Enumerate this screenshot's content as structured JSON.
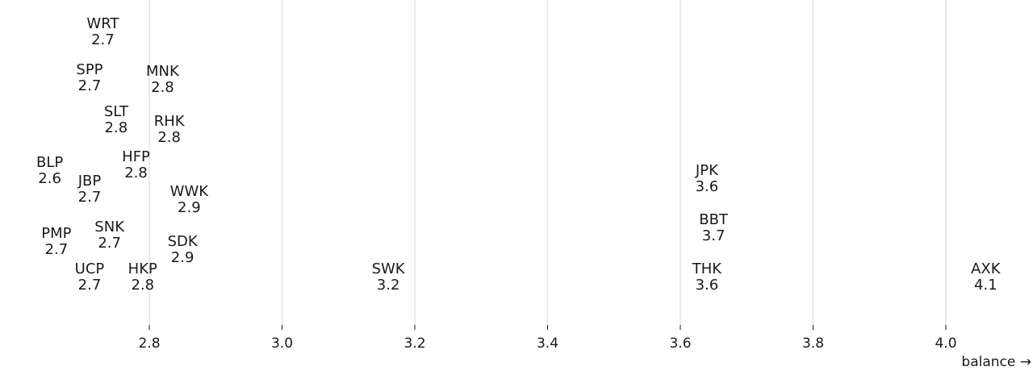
{
  "chart_data": {
    "type": "scatter",
    "title": "",
    "xlabel": "balance →",
    "ylabel": "",
    "xlim": [
      2.6,
      4.1
    ],
    "x_ticks": [
      2.8,
      3.0,
      3.2,
      3.4,
      3.6,
      3.8,
      4.0
    ],
    "x_tick_labels": [
      "2.8",
      "3.0",
      "3.2",
      "3.4",
      "3.6",
      "3.8",
      "4.0"
    ],
    "grid": "vertical",
    "points": [
      {
        "name": "WRT",
        "x": 2.73,
        "label": "2.7"
      },
      {
        "name": "SPP",
        "x": 2.71,
        "label": "2.7"
      },
      {
        "name": "MNK",
        "x": 2.82,
        "label": "2.8"
      },
      {
        "name": "SLT",
        "x": 2.75,
        "label": "2.8"
      },
      {
        "name": "RHK",
        "x": 2.83,
        "label": "2.8"
      },
      {
        "name": "BLP",
        "x": 2.65,
        "label": "2.6"
      },
      {
        "name": "HFP",
        "x": 2.78,
        "label": "2.8"
      },
      {
        "name": "JBP",
        "x": 2.71,
        "label": "2.7"
      },
      {
        "name": "WWK",
        "x": 2.86,
        "label": "2.9"
      },
      {
        "name": "JPK",
        "x": 3.64,
        "label": "3.6"
      },
      {
        "name": "PMP",
        "x": 2.66,
        "label": "2.7"
      },
      {
        "name": "SNK",
        "x": 2.74,
        "label": "2.7"
      },
      {
        "name": "SDK",
        "x": 2.85,
        "label": "2.9"
      },
      {
        "name": "BBT",
        "x": 3.65,
        "label": "3.7"
      },
      {
        "name": "UCP",
        "x": 2.71,
        "label": "2.7"
      },
      {
        "name": "HKP",
        "x": 2.79,
        "label": "2.8"
      },
      {
        "name": "SWK",
        "x": 3.16,
        "label": "3.2"
      },
      {
        "name": "THK",
        "x": 3.64,
        "label": "3.6"
      },
      {
        "name": "AXK",
        "x": 4.06,
        "label": "4.1"
      }
    ]
  }
}
